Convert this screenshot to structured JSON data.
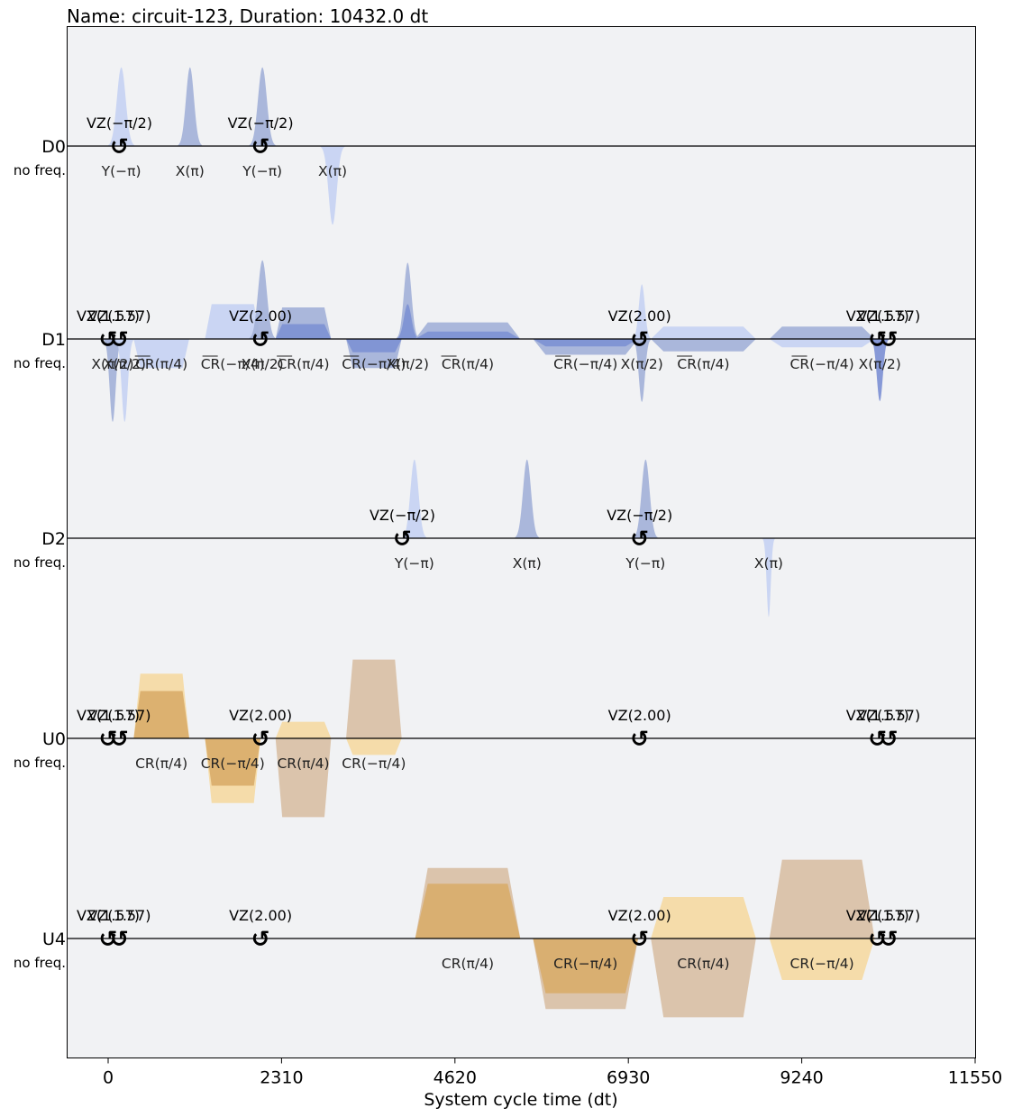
{
  "title": "Name: circuit-123, Duration: 10432.0 dt",
  "colors": {
    "d_light": "#c7d2f2",
    "d_medium": "#a4b2d8",
    "d_dark": "#7e91d4",
    "u_light": "#f5daa3",
    "u_medium": "#d9c0a5",
    "u_dark": "#d9ac6b",
    "background": "#f1f2f4",
    "baseline": "#000000"
  },
  "chart_data": {
    "type": "pulse-schedule",
    "xlabel": "System cycle time (dt)",
    "xlim": [
      -500,
      11550
    ],
    "xticks": [
      0,
      2310,
      4620,
      6930,
      9240,
      11550
    ],
    "channels": [
      {
        "name": "D0",
        "freq": "no freq.",
        "pulses": [
          {
            "t0": 0,
            "t1": 350,
            "shape": "gauss",
            "amp": 0.95,
            "color": "light",
            "label": "Y(−π)"
          },
          {
            "t0": 930,
            "t1": 1250,
            "shape": "gauss",
            "amp": 0.95,
            "color": "medium",
            "label": "X(π)"
          },
          {
            "t0": 1880,
            "t1": 2230,
            "shape": "gauss",
            "amp": 0.95,
            "color": "medium",
            "label": "Y(−π)"
          },
          {
            "t0": 2830,
            "t1": 3150,
            "shape": "gauss",
            "amp": -0.95,
            "color": "light",
            "label": "X(π)"
          }
        ],
        "vz": [
          {
            "t": 150,
            "label": "VZ(−π/2)"
          },
          {
            "t": 2030,
            "label": "VZ(−π/2)"
          }
        ]
      },
      {
        "name": "D1",
        "freq": "no freq.",
        "pulses": [
          {
            "t0": -60,
            "t1": 180,
            "shape": "gauss",
            "amp": -1.0,
            "color": "medium",
            "label": "X(π/2)"
          },
          {
            "t0": 100,
            "t1": 340,
            "shape": "gauss",
            "amp": -1.0,
            "color": "light",
            "label": "X(π/2)"
          },
          {
            "t0": 340,
            "t1": 1080,
            "shape": "flat",
            "amp": -0.35,
            "color": "light",
            "label": "CR(π/4)",
            "overline": true
          },
          {
            "t0": 1290,
            "t1": 2030,
            "shape": "flat",
            "amp": 0.42,
            "color": "light",
            "label": "CR(−π/4)",
            "overline": true
          },
          {
            "t0": 1880,
            "t1": 2230,
            "shape": "gauss",
            "amp": 0.95,
            "color": "medium",
            "label": "X(π/2)"
          },
          {
            "t0": 2230,
            "t1": 2970,
            "shape": "flat",
            "amp": 0.38,
            "color": "medium",
            "label": "CR(π/4)",
            "overline": true
          },
          {
            "t0": 2230,
            "t1": 2970,
            "shape": "flat",
            "amp": 0.18,
            "color": "dark",
            "label": ""
          },
          {
            "t0": 3170,
            "t1": 3910,
            "shape": "flat",
            "amp": -0.35,
            "color": "medium",
            "label": "CR(−π/4)",
            "overline": true
          },
          {
            "t0": 3170,
            "t1": 3910,
            "shape": "flat",
            "amp": -0.16,
            "color": "dark",
            "label": ""
          },
          {
            "t0": 3840,
            "t1": 4140,
            "shape": "gauss",
            "amp": 0.92,
            "color": "medium",
            "label": "X(π/2)"
          },
          {
            "t0": 3840,
            "t1": 4140,
            "shape": "gauss",
            "amp": 0.42,
            "color": "dark",
            "label": ""
          },
          {
            "t0": 4090,
            "t1": 5490,
            "shape": "flat",
            "amp": 0.2,
            "color": "medium",
            "label": "CR(π/4)",
            "overline": true
          },
          {
            "t0": 4090,
            "t1": 5490,
            "shape": "flat",
            "amp": 0.09,
            "color": "dark",
            "label": ""
          },
          {
            "t0": 5660,
            "t1": 7060,
            "shape": "flat",
            "amp": -0.19,
            "color": "medium",
            "label": "CR(−π/4)",
            "overline": true
          },
          {
            "t0": 5660,
            "t1": 7060,
            "shape": "flat",
            "amp": -0.09,
            "color": "dark",
            "label": ""
          },
          {
            "t0": 6990,
            "t1": 7230,
            "shape": "gauss",
            "amp": 0.66,
            "color": "light",
            "label": "X(π/2)"
          },
          {
            "t0": 6990,
            "t1": 7230,
            "shape": "gauss",
            "amp": -0.76,
            "color": "medium",
            "label": ""
          },
          {
            "t0": 7230,
            "t1": 8630,
            "shape": "flat",
            "amp": 0.15,
            "color": "light",
            "label": "CR(π/4)",
            "overline": true
          },
          {
            "t0": 7230,
            "t1": 8630,
            "shape": "flat",
            "amp": -0.15,
            "color": "medium",
            "label": ""
          },
          {
            "t0": 8810,
            "t1": 10210,
            "shape": "flat",
            "amp": 0.15,
            "color": "medium",
            "label": "CR(−π/4)",
            "overline": true
          },
          {
            "t0": 8810,
            "t1": 10210,
            "shape": "flat",
            "amp": -0.1,
            "color": "light",
            "label": ""
          },
          {
            "t0": 10160,
            "t1": 10400,
            "shape": "gauss",
            "amp": -0.75,
            "color": "dark",
            "label": "X(π/2)"
          }
        ],
        "vz": [
          {
            "t": 0,
            "label": "VZ(1.57)"
          },
          {
            "t": 150,
            "label": "VZ(1.57)"
          },
          {
            "t": 2030,
            "label": "VZ(2.00)"
          },
          {
            "t": 7080,
            "label": "VZ(2.00)"
          },
          {
            "t": 10250,
            "label": "VZ(1.57)"
          },
          {
            "t": 10400,
            "label": "VZ(1.57)"
          }
        ]
      },
      {
        "name": "D2",
        "freq": "no freq.",
        "pulses": [
          {
            "t0": 3920,
            "t1": 4240,
            "shape": "gauss",
            "amp": 0.95,
            "color": "light",
            "label": "Y(−π)"
          },
          {
            "t0": 5420,
            "t1": 5740,
            "shape": "gauss",
            "amp": 0.95,
            "color": "medium",
            "label": "X(π)"
          },
          {
            "t0": 7000,
            "t1": 7320,
            "shape": "gauss",
            "amp": 0.95,
            "color": "medium",
            "label": "Y(−π)"
          },
          {
            "t0": 8720,
            "t1": 8880,
            "shape": "gauss",
            "amp": -0.95,
            "color": "light",
            "label": "X(π)"
          }
        ],
        "vz": [
          {
            "t": 3920,
            "label": "VZ(−π/2)"
          },
          {
            "t": 7080,
            "label": "VZ(−π/2)"
          }
        ]
      },
      {
        "name": "U0",
        "freq": "no freq.",
        "pulses": [
          {
            "t0": 340,
            "t1": 1080,
            "shape": "flat",
            "amp": 0.78,
            "color": "light",
            "label": "CR(π/4)"
          },
          {
            "t0": 340,
            "t1": 1080,
            "shape": "flat",
            "amp": 0.57,
            "color": "dark",
            "label": ""
          },
          {
            "t0": 1290,
            "t1": 2030,
            "shape": "flat",
            "amp": -0.78,
            "color": "light",
            "label": "CR(−π/4)"
          },
          {
            "t0": 1290,
            "t1": 2030,
            "shape": "flat",
            "amp": -0.57,
            "color": "dark",
            "label": ""
          },
          {
            "t0": 2230,
            "t1": 2970,
            "shape": "flat",
            "amp": 0.2,
            "color": "light",
            "label": "CR(π/4)"
          },
          {
            "t0": 2230,
            "t1": 2970,
            "shape": "flat",
            "amp": -0.95,
            "color": "medium",
            "label": ""
          },
          {
            "t0": 3170,
            "t1": 3910,
            "shape": "flat",
            "amp": 0.95,
            "color": "medium",
            "label": "CR(−π/4)"
          },
          {
            "t0": 3170,
            "t1": 3910,
            "shape": "flat",
            "amp": -0.2,
            "color": "light",
            "label": ""
          }
        ],
        "vz": [
          {
            "t": 0,
            "label": "VZ(1.57)"
          },
          {
            "t": 150,
            "label": "VZ(1.57)"
          },
          {
            "t": 2030,
            "label": "VZ(2.00)"
          },
          {
            "t": 7080,
            "label": "VZ(2.00)"
          },
          {
            "t": 10250,
            "label": "VZ(1.57)"
          },
          {
            "t": 10400,
            "label": "VZ(1.57)"
          }
        ]
      },
      {
        "name": "U4",
        "freq": "no freq.",
        "pulses": [
          {
            "t0": 4090,
            "t1": 5490,
            "shape": "flat",
            "amp": 0.85,
            "color": "medium",
            "label": "CR(π/4)"
          },
          {
            "t0": 4090,
            "t1": 5490,
            "shape": "flat",
            "amp": 0.66,
            "color": "dark",
            "label": ""
          },
          {
            "t0": 5660,
            "t1": 7060,
            "shape": "flat",
            "amp": -0.85,
            "color": "medium",
            "label": "CR(−π/4)"
          },
          {
            "t0": 5660,
            "t1": 7060,
            "shape": "flat",
            "amp": -0.66,
            "color": "dark",
            "label": ""
          },
          {
            "t0": 7230,
            "t1": 8630,
            "shape": "flat",
            "amp": 0.5,
            "color": "light",
            "label": "CR(π/4)"
          },
          {
            "t0": 7230,
            "t1": 8630,
            "shape": "flat",
            "amp": -0.95,
            "color": "medium",
            "label": ""
          },
          {
            "t0": 8810,
            "t1": 10210,
            "shape": "flat",
            "amp": 0.95,
            "color": "medium",
            "label": "CR(−π/4)"
          },
          {
            "t0": 8810,
            "t1": 10210,
            "shape": "flat",
            "amp": -0.5,
            "color": "light",
            "label": ""
          }
        ],
        "vz": [
          {
            "t": 0,
            "label": "VZ(1.57)"
          },
          {
            "t": 150,
            "label": "VZ(1.57)"
          },
          {
            "t": 2030,
            "label": "VZ(2.00)"
          },
          {
            "t": 7080,
            "label": "VZ(2.00)"
          },
          {
            "t": 10250,
            "label": "VZ(1.57)"
          },
          {
            "t": 10400,
            "label": "VZ(1.57)"
          }
        ]
      }
    ]
  }
}
